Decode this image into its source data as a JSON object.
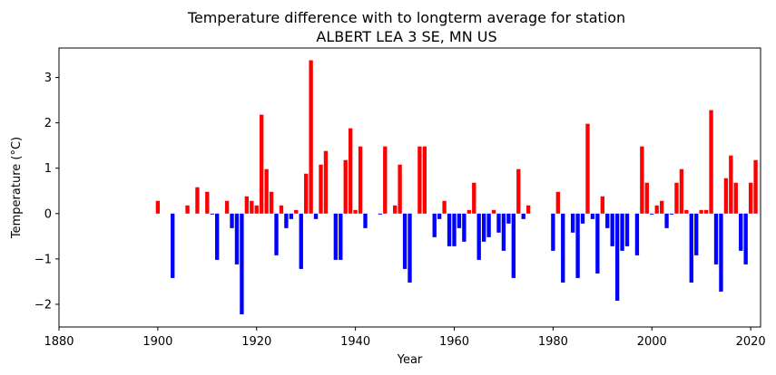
{
  "chart_data": {
    "type": "bar",
    "title_line1": "Temperature difference with to longterm average for station",
    "title_line2": "ALBERT LEA 3 SE, MN US",
    "xlabel": "Year",
    "ylabel": "Temperature (°C)",
    "xlim": [
      1880,
      2022
    ],
    "ylim": [
      -2.5,
      3.65
    ],
    "xticks": [
      1880,
      1900,
      1920,
      1940,
      1960,
      1980,
      2000,
      2020
    ],
    "yticks": [
      -2,
      -1,
      0,
      1,
      2,
      3
    ],
    "ytick_labels": [
      "−2",
      "−1",
      "0",
      "1",
      "2",
      "3"
    ],
    "positive_color": "#ff0000",
    "negative_color": "#0000ff",
    "grid": false,
    "x": [
      1900,
      1903,
      1906,
      1908,
      1910,
      1911,
      1912,
      1914,
      1915,
      1916,
      1917,
      1918,
      1919,
      1920,
      1921,
      1922,
      1923,
      1924,
      1925,
      1926,
      1927,
      1928,
      1929,
      1930,
      1931,
      1932,
      1933,
      1934,
      1936,
      1937,
      1938,
      1939,
      1940,
      1941,
      1942,
      1945,
      1946,
      1948,
      1949,
      1950,
      1951,
      1953,
      1954,
      1956,
      1957,
      1958,
      1959,
      1960,
      1961,
      1962,
      1963,
      1964,
      1965,
      1966,
      1967,
      1968,
      1969,
      1970,
      1971,
      1972,
      1973,
      1974,
      1975,
      1980,
      1981,
      1982,
      1984,
      1985,
      1986,
      1987,
      1988,
      1989,
      1990,
      1991,
      1992,
      1993,
      1994,
      1995,
      1997,
      1998,
      1999,
      2000,
      2001,
      2002,
      2003,
      2004,
      2005,
      2006,
      2007,
      2008,
      2009,
      2010,
      2011,
      2012,
      2013,
      2014,
      2015,
      2016,
      2017,
      2018,
      2019,
      2020,
      2021
    ],
    "values": [
      0.28,
      -1.42,
      0.18,
      0.58,
      0.48,
      -0.02,
      -1.02,
      0.28,
      -0.32,
      -1.12,
      -2.22,
      0.38,
      0.28,
      0.18,
      2.18,
      0.98,
      0.48,
      -0.92,
      0.18,
      -0.32,
      -0.12,
      0.08,
      -1.22,
      0.88,
      3.38,
      -0.12,
      1.08,
      1.38,
      -1.02,
      -1.02,
      1.18,
      1.88,
      0.08,
      1.48,
      -0.32,
      -0.02,
      1.48,
      0.18,
      1.08,
      -1.22,
      -1.52,
      1.48,
      1.48,
      -0.52,
      -0.12,
      0.28,
      -0.72,
      -0.72,
      -0.32,
      -0.62,
      0.08,
      0.68,
      -1.02,
      -0.62,
      -0.52,
      0.08,
      -0.42,
      -0.82,
      -0.22,
      -1.42,
      0.98,
      -0.12,
      0.18,
      -0.82,
      0.48,
      -1.52,
      -0.42,
      -1.42,
      -0.22,
      1.98,
      -0.12,
      -1.32,
      0.38,
      -0.32,
      -0.72,
      -1.92,
      -0.82,
      -0.72,
      -0.92,
      1.48,
      0.68,
      -0.02,
      0.18,
      0.28,
      -0.32,
      -0.02,
      0.68,
      0.98,
      0.08,
      -1.52,
      -0.92,
      0.08,
      0.08,
      2.28,
      -1.12,
      -1.72,
      0.78,
      1.28,
      0.68,
      -0.82,
      -1.12,
      0.68,
      1.18
    ]
  }
}
